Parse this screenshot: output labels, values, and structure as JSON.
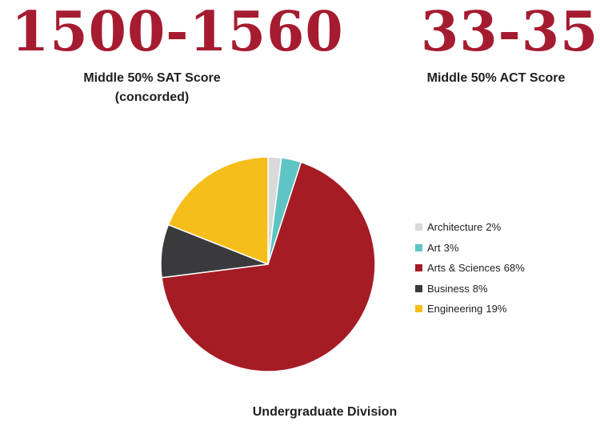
{
  "stats": {
    "sat": {
      "value": "1500-1560",
      "label_line1": "Middle 50% SAT Score",
      "label_line2": "(concorded)"
    },
    "act": {
      "value": "33-35",
      "label_line1": "Middle 50% ACT Score"
    }
  },
  "chart_data": {
    "type": "pie",
    "title": "",
    "caption": "Undergraduate Division",
    "legend_position": "right",
    "slices": [
      {
        "label": "Architecture",
        "pct_label": "2%",
        "value": 2,
        "color": "#d9d9d9"
      },
      {
        "label": "Art",
        "pct_label": "3%",
        "value": 3,
        "color": "#5ec4c4"
      },
      {
        "label": "Arts & Sciences",
        "pct_label": "68%",
        "value": 68,
        "color": "#a51c24"
      },
      {
        "label": "Business",
        "pct_label": "8%",
        "value": 8,
        "color": "#3a3a3c"
      },
      {
        "label": "Engineering",
        "pct_label": "19%",
        "value": 19,
        "color": "#f6be1a"
      }
    ]
  }
}
